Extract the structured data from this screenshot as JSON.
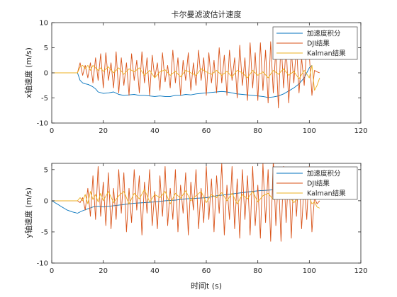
{
  "chart_data": [
    {
      "type": "line",
      "title": "卡尔曼滤波估计速度",
      "xlabel": "",
      "ylabel": "x轴速度 (m/s)",
      "xlim": [
        0,
        120
      ],
      "ylim": [
        -10,
        10
      ],
      "xticks": [
        0,
        20,
        40,
        60,
        80,
        100,
        120
      ],
      "yticks": [
        -10,
        -5,
        0,
        5,
        10
      ],
      "grid": false,
      "legend_position": "top-right",
      "series": [
        {
          "name": "加速度积分",
          "color": "#0072BD",
          "x": [
            0,
            10,
            11,
            12,
            13,
            14,
            15,
            16,
            17,
            18,
            20,
            22,
            24,
            26,
            28,
            30,
            32,
            34,
            36,
            38,
            40,
            42,
            44,
            46,
            48,
            50,
            52,
            54,
            56,
            58,
            60,
            62,
            64,
            66,
            68,
            70,
            72,
            74,
            76,
            78,
            80,
            82,
            84,
            86,
            88,
            90,
            92,
            94,
            96,
            98,
            100,
            101
          ],
          "y": [
            0,
            0,
            -1.5,
            -2.0,
            -2.2,
            -2.3,
            -2.5,
            -2.8,
            -3.2,
            -3.8,
            -4.1,
            -4.0,
            -3.8,
            -4.3,
            -4.5,
            -4.4,
            -4.3,
            -4.5,
            -4.5,
            -4.6,
            -4.7,
            -4.6,
            -4.7,
            -4.7,
            -4.5,
            -4.5,
            -4.3,
            -4.4,
            -4.2,
            -4.1,
            -4.0,
            -3.9,
            -3.8,
            -3.7,
            -3.8,
            -4.0,
            -4.2,
            -4.3,
            -4.4,
            -4.5,
            -4.6,
            -4.7,
            -4.9,
            -4.8,
            -4.6,
            -4.2,
            -3.6,
            -3.0,
            -2.2,
            -1.0,
            1.0,
            1.5
          ]
        },
        {
          "name": "DJI结果",
          "color": "#D95319",
          "x": [
            0,
            10,
            11,
            12,
            13,
            14,
            15,
            16,
            17,
            18,
            19,
            20,
            21,
            22,
            23,
            24,
            25,
            26,
            27,
            28,
            29,
            30,
            31,
            32,
            33,
            34,
            35,
            36,
            37,
            38,
            39,
            40,
            41,
            42,
            43,
            44,
            45,
            46,
            47,
            48,
            49,
            50,
            51,
            52,
            53,
            54,
            55,
            56,
            57,
            58,
            59,
            60,
            61,
            62,
            63,
            64,
            65,
            66,
            67,
            68,
            69,
            70,
            71,
            72,
            73,
            74,
            75,
            76,
            77,
            78,
            79,
            80,
            81,
            82,
            83,
            84,
            85,
            86,
            87,
            88,
            89,
            90,
            91,
            92,
            93,
            94,
            95,
            96,
            97,
            98,
            99,
            100,
            101,
            102,
            103,
            104
          ],
          "y": [
            0,
            0,
            2.0,
            -0.5,
            1.5,
            -1.0,
            2.0,
            -2.0,
            3.0,
            -1.5,
            3.8,
            -3.0,
            4.0,
            -1.5,
            2.0,
            -3.0,
            4.2,
            -4.0,
            3.0,
            -2.5,
            2.0,
            -4.5,
            3.8,
            -1.5,
            2.5,
            -4.0,
            4.2,
            -2.0,
            3.0,
            -4.5,
            3.5,
            -1.0,
            2.0,
            -3.5,
            4.0,
            -1.8,
            1.5,
            -3.0,
            4.5,
            -2.0,
            3.0,
            -4.5,
            2.5,
            -1.5,
            4.0,
            -3.5,
            2.0,
            -2.5,
            4.5,
            -1.5,
            3.0,
            -4.5,
            4.0,
            -2.0,
            2.5,
            -4.0,
            5.0,
            -2.0,
            3.5,
            -4.5,
            4.5,
            -1.5,
            3.0,
            -5.0,
            5.5,
            -2.5,
            3.0,
            -5.5,
            6.0,
            -3.0,
            4.0,
            -5.5,
            6.0,
            -3.5,
            4.5,
            -6.0,
            6.2,
            -4.0,
            5.0,
            -7.0,
            6.5,
            -3.0,
            5.5,
            -6.0,
            4.5,
            -2.0,
            5.5,
            -4.0,
            3.0,
            -2.5,
            5.0,
            3.5,
            -4.5,
            0.5,
            0.2,
            0
          ]
        },
        {
          "name": "Kalman结果",
          "color": "#EDB120",
          "x": [
            0,
            10,
            11,
            12,
            13,
            14,
            15,
            16,
            17,
            18,
            19,
            20,
            22,
            24,
            26,
            28,
            30,
            32,
            34,
            36,
            38,
            40,
            42,
            44,
            46,
            48,
            50,
            52,
            54,
            56,
            58,
            60,
            62,
            64,
            66,
            68,
            70,
            72,
            74,
            76,
            78,
            80,
            82,
            84,
            86,
            88,
            90,
            92,
            94,
            96,
            98,
            100,
            101,
            102,
            103,
            104
          ],
          "y": [
            0,
            0,
            1.2,
            1.5,
            0.8,
            1.5,
            0.5,
            1.5,
            1.0,
            0.5,
            1.0,
            0.3,
            1.2,
            0.0,
            1.0,
            -0.3,
            0.8,
            0.2,
            1.0,
            -0.5,
            0.5,
            -1.0,
            0.2,
            0.6,
            -0.5,
            0.3,
            -0.8,
            0.5,
            0.0,
            -0.5,
            0.8,
            0.2,
            -0.3,
            0.5,
            -0.5,
            0.3,
            -0.8,
            0.5,
            0.0,
            -1.0,
            0.5,
            -0.5,
            0.2,
            -1.0,
            0.5,
            -0.3,
            0.8,
            -0.5,
            0.3,
            -1.2,
            0.5,
            -1.0,
            1.5,
            -3.5,
            -2.5,
            -1.0
          ]
        }
      ]
    },
    {
      "type": "line",
      "title": "",
      "xlabel": "时间t (s)",
      "ylabel": "y轴速度 (m/s)",
      "xlim": [
        0,
        120
      ],
      "ylim": [
        -10,
        6
      ],
      "xticks": [
        0,
        20,
        40,
        60,
        80,
        100,
        120
      ],
      "yticks": [
        -10,
        -5,
        0,
        5
      ],
      "grid": false,
      "legend_position": "top-right",
      "series": [
        {
          "name": "加速度积分",
          "color": "#0072BD",
          "x": [
            0,
            2,
            4,
            6,
            8,
            10,
            12,
            14,
            16,
            18,
            20,
            24,
            28,
            32,
            36,
            40,
            44,
            48,
            52,
            56,
            60,
            64,
            68,
            72,
            76,
            80,
            84,
            88,
            92,
            96,
            100,
            101
          ],
          "y": [
            0,
            -0.5,
            -1.0,
            -1.5,
            -1.8,
            -2.0,
            -1.6,
            -1.3,
            -1.0,
            -0.9,
            -1.0,
            -0.8,
            -0.6,
            -0.4,
            -0.3,
            -0.2,
            0.0,
            0.1,
            0.3,
            0.4,
            0.5,
            0.8,
            1.0,
            1.2,
            1.4,
            1.6,
            1.7,
            1.8,
            1.8,
            1.8,
            2.0,
            2.0
          ]
        },
        {
          "name": "DJI结果",
          "color": "#D95319",
          "x": [
            0,
            10,
            11,
            12,
            13,
            14,
            15,
            16,
            17,
            18,
            19,
            20,
            21,
            22,
            23,
            24,
            25,
            26,
            27,
            28,
            29,
            30,
            31,
            32,
            33,
            34,
            35,
            36,
            37,
            38,
            39,
            40,
            41,
            42,
            43,
            44,
            45,
            46,
            47,
            48,
            49,
            50,
            51,
            52,
            53,
            54,
            55,
            56,
            57,
            58,
            59,
            60,
            61,
            62,
            63,
            64,
            65,
            66,
            67,
            68,
            69,
            70,
            71,
            72,
            73,
            74,
            75,
            76,
            77,
            78,
            79,
            80,
            81,
            82,
            83,
            84,
            85,
            86,
            87,
            88,
            89,
            90,
            91,
            92,
            93,
            94,
            95,
            96,
            97,
            98,
            99,
            100,
            101,
            102,
            103,
            104
          ],
          "y": [
            0,
            0,
            -0.3,
            0.5,
            -1.5,
            2.0,
            -2.5,
            4.0,
            -3.0,
            5.5,
            -2.5,
            3.0,
            -4.0,
            4.5,
            -4.5,
            2.0,
            -3.0,
            5.0,
            -2.0,
            4.5,
            -5.0,
            2.0,
            -3.5,
            5.0,
            -1.5,
            4.0,
            -5.5,
            3.0,
            -2.0,
            5.0,
            -4.0,
            1.5,
            -4.5,
            4.0,
            -2.5,
            5.5,
            -4.0,
            2.0,
            -3.0,
            5.0,
            -5.0,
            2.5,
            -2.0,
            4.5,
            -5.5,
            3.0,
            -1.5,
            5.0,
            -4.5,
            2.0,
            -3.5,
            5.5,
            -3.0,
            3.5,
            -5.0,
            4.0,
            -2.0,
            6.0,
            -5.5,
            2.5,
            -3.0,
            5.5,
            -4.5,
            3.5,
            -6.0,
            5.0,
            -3.0,
            4.0,
            -5.5,
            5.5,
            -4.0,
            2.5,
            -6.0,
            6.0,
            -3.5,
            5.0,
            -6.5,
            6.5,
            -4.0,
            4.0,
            -6.5,
            5.5,
            -3.5,
            5.0,
            -6.0,
            4.5,
            -2.5,
            5.0,
            -4.5,
            3.0,
            -3.0,
            5.5,
            -5.0,
            0.5,
            -0.5,
            0
          ]
        },
        {
          "name": "Kalman结果",
          "color": "#EDB120",
          "x": [
            0,
            10,
            11,
            12,
            13,
            14,
            15,
            16,
            17,
            18,
            19,
            20,
            22,
            24,
            26,
            28,
            30,
            32,
            34,
            36,
            38,
            40,
            42,
            44,
            46,
            48,
            50,
            52,
            54,
            56,
            58,
            60,
            62,
            64,
            66,
            68,
            70,
            72,
            74,
            76,
            78,
            80,
            82,
            84,
            86,
            88,
            90,
            92,
            94,
            96,
            98,
            100,
            101,
            102,
            103,
            104
          ],
          "y": [
            0,
            0,
            0.5,
            0.0,
            1.0,
            -0.5,
            1.5,
            0.2,
            1.0,
            -0.2,
            1.2,
            0.0,
            1.5,
            -0.3,
            0.8,
            1.5,
            -0.5,
            1.2,
            0.3,
            1.8,
            -0.2,
            1.0,
            0.5,
            1.5,
            -0.5,
            1.2,
            0.4,
            1.6,
            0.0,
            0.8,
            1.5,
            -0.3,
            1.0,
            0.5,
            1.3,
            0.0,
            1.2,
            -0.5,
            1.0,
            0.3,
            1.5,
            -0.2,
            0.8,
            1.2,
            0.2,
            1.0,
            0.4,
            0.8,
            -0.3,
            0.5,
            0.2,
            0.6,
            -0.5,
            -0.2,
            -1.0,
            -1.2
          ]
        }
      ]
    }
  ]
}
